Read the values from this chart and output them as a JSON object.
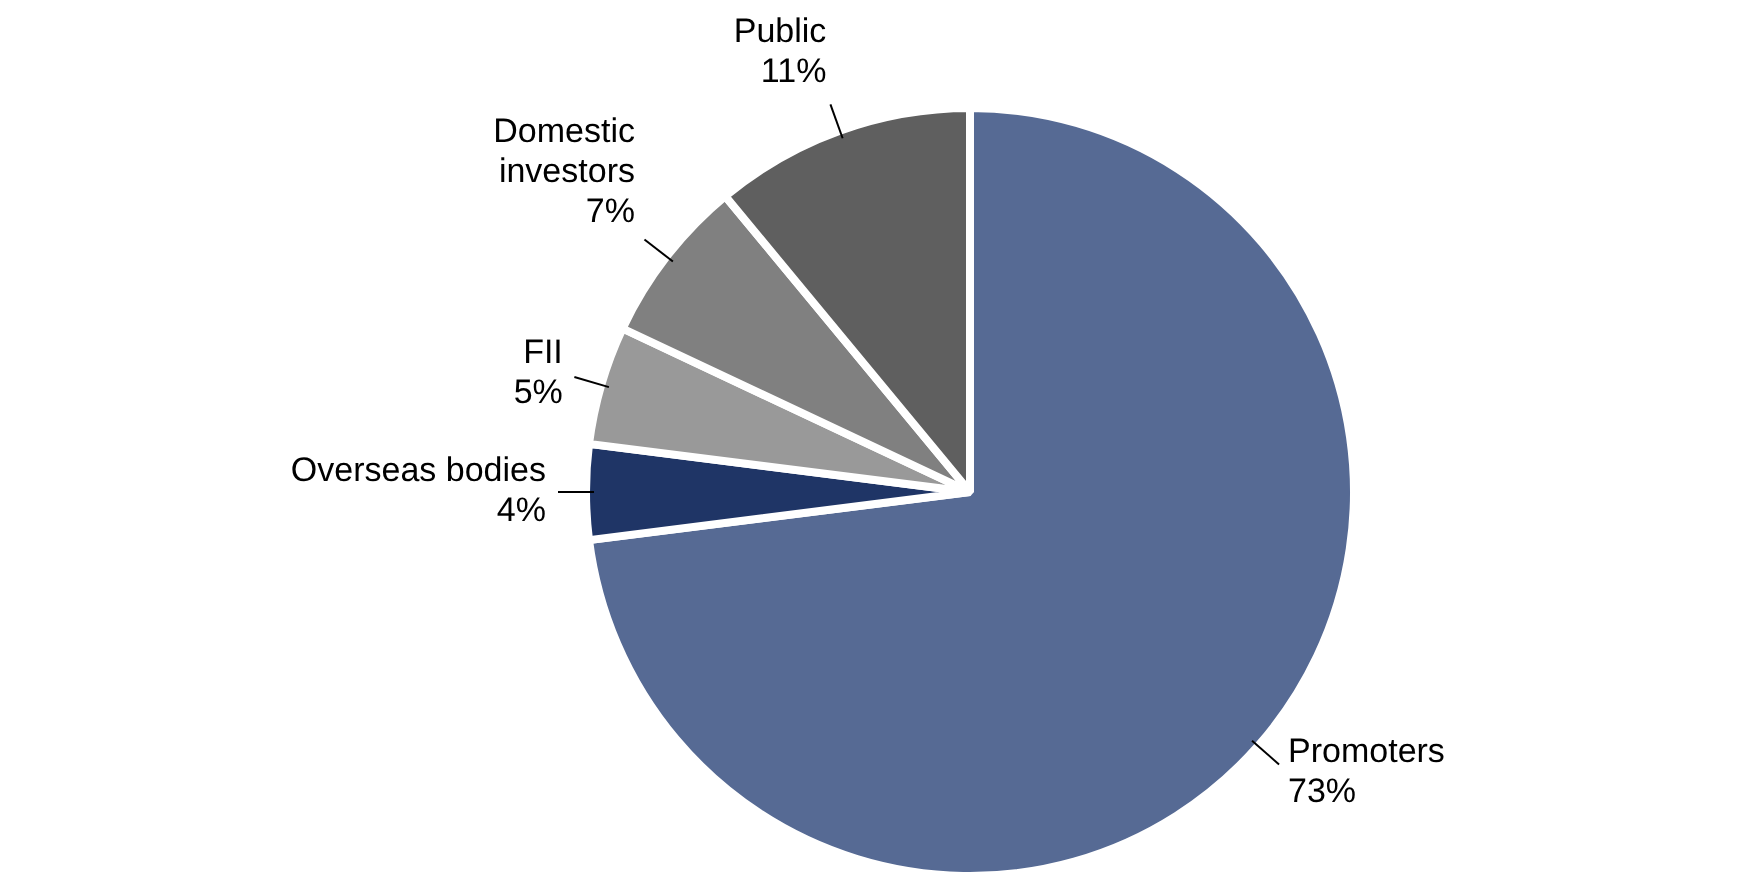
{
  "chart_data": {
    "type": "pie",
    "categories": [
      "Promoters",
      "Overseas bodies",
      "FII",
      "Domestic investors",
      "Public"
    ],
    "values": [
      73,
      4,
      5,
      7,
      11
    ],
    "colors": [
      "#566a94",
      "#1f3566",
      "#999999",
      "#808080",
      "#5f5f5f"
    ],
    "value_labels": [
      "73%",
      "4%",
      "5%",
      "7%",
      "11%"
    ],
    "legend": false
  }
}
